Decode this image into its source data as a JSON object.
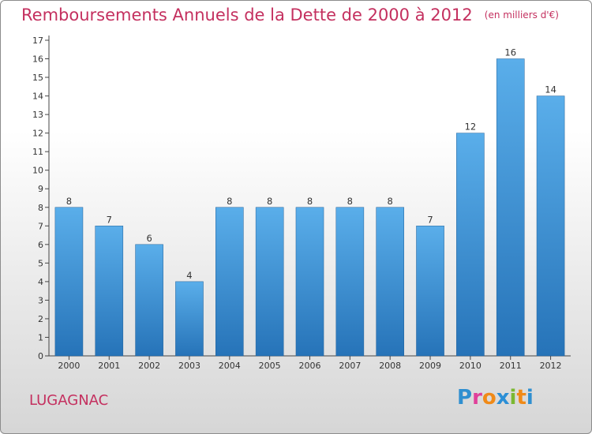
{
  "title": "Remboursements Annuels de la Dette de 2000 à 2012",
  "unit": "(en milliers d'€)",
  "commune": "LUGAGNAC",
  "logo": {
    "letters": [
      "P",
      "r",
      "o",
      "x",
      "i",
      "t",
      "i"
    ],
    "colors": [
      "#2f8fd0",
      "#e0409a",
      "#f08a18",
      "#2c8fd6",
      "#7bb832",
      "#f08a18",
      "#2f8fd0"
    ]
  },
  "colors": {
    "bar": "#4a9fe0",
    "bar_dark": "#2a78bd",
    "title": "#c4305f"
  },
  "chart_data": {
    "type": "bar",
    "title": "Remboursements Annuels de la Dette de 2000 à 2012",
    "categories": [
      "2000",
      "2001",
      "2002",
      "2003",
      "2004",
      "2005",
      "2006",
      "2007",
      "2008",
      "2009",
      "2010",
      "2011",
      "2012"
    ],
    "values": [
      8,
      7,
      6,
      4,
      8,
      8,
      8,
      8,
      8,
      7,
      12,
      16,
      14
    ],
    "ylim": [
      0,
      17
    ],
    "yticks": [
      0,
      1,
      2,
      3,
      4,
      5,
      6,
      7,
      8,
      9,
      10,
      11,
      12,
      13,
      14,
      15,
      16,
      17
    ],
    "grid": false,
    "data_labels": true
  }
}
